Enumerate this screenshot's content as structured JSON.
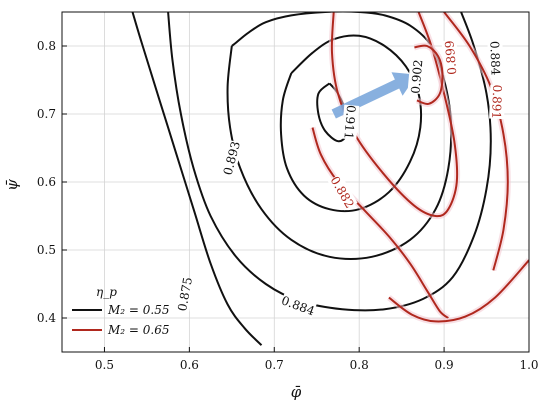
{
  "chart_data": {
    "type": "line",
    "xlabel": "φ̄",
    "ylabel": "ψ̄",
    "xlim": [
      0.45,
      1.0
    ],
    "ylim": [
      0.35,
      0.85
    ],
    "xticks": [
      "0.5",
      "0.6",
      "0.7",
      "0.8",
      "0.9",
      "1.0"
    ],
    "yticks": [
      "0.4",
      "0.5",
      "0.6",
      "0.7",
      "0.8"
    ],
    "grid": true,
    "legend": {
      "title": "η_p",
      "placement": "bottom-left",
      "entries": [
        {
          "label": "M₂ = 0.55",
          "color": "#111111"
        },
        {
          "label": "M₂ = 0.65",
          "color": "#b0281e"
        }
      ]
    },
    "series": [
      {
        "group": "black",
        "level": "0.875",
        "x": [
          0.533,
          0.545,
          0.565,
          0.585,
          0.605,
          0.625,
          0.645,
          0.665,
          0.685
        ],
        "y": [
          0.85,
          0.8,
          0.72,
          0.64,
          0.56,
          0.48,
          0.42,
          0.385,
          0.36
        ]
      },
      {
        "group": "black",
        "level": "0.884",
        "x": [
          0.575,
          0.58,
          0.59,
          0.605,
          0.625,
          0.655,
          0.69,
          0.73,
          0.78,
          0.83,
          0.875,
          0.91,
          0.935,
          0.95,
          0.955,
          0.95,
          0.935,
          0.92
        ],
        "y": [
          0.85,
          0.78,
          0.7,
          0.62,
          0.55,
          0.49,
          0.45,
          0.425,
          0.413,
          0.413,
          0.428,
          0.46,
          0.52,
          0.59,
          0.66,
          0.73,
          0.8,
          0.85
        ]
      },
      {
        "group": "black",
        "level": "0.893",
        "x": [
          0.65,
          0.645,
          0.648,
          0.66,
          0.685,
          0.72,
          0.765,
          0.815,
          0.86,
          0.89,
          0.905,
          0.908,
          0.9,
          0.885,
          0.86,
          0.83,
          0.8,
          0.76,
          0.72,
          0.69,
          0.67,
          0.655,
          0.65
        ],
        "y": [
          0.8,
          0.74,
          0.68,
          0.62,
          0.56,
          0.515,
          0.49,
          0.49,
          0.515,
          0.56,
          0.62,
          0.69,
          0.75,
          0.8,
          0.83,
          0.845,
          0.85,
          0.85,
          0.845,
          0.835,
          0.82,
          0.805,
          0.8
        ]
      },
      {
        "group": "black",
        "level": "0.902",
        "x": [
          0.72,
          0.71,
          0.708,
          0.715,
          0.735,
          0.765,
          0.8,
          0.835,
          0.86,
          0.872,
          0.87,
          0.855,
          0.83,
          0.8,
          0.77,
          0.745,
          0.72
        ],
        "y": [
          0.76,
          0.72,
          0.67,
          0.62,
          0.58,
          0.56,
          0.56,
          0.585,
          0.63,
          0.68,
          0.73,
          0.77,
          0.8,
          0.815,
          0.81,
          0.79,
          0.76
        ]
      },
      {
        "group": "black",
        "level": "0.911",
        "x": [
          0.765,
          0.752,
          0.752,
          0.76,
          0.775,
          0.785,
          0.785,
          0.775,
          0.765
        ],
        "y": [
          0.745,
          0.73,
          0.7,
          0.675,
          0.66,
          0.67,
          0.7,
          0.73,
          0.745
        ]
      },
      {
        "group": "red",
        "level": "0.882",
        "x": [
          0.77,
          0.768,
          0.775,
          0.795,
          0.83,
          0.865,
          0.89,
          0.905,
          0.915,
          0.912,
          0.9,
          0.885,
          0.87
        ],
        "y": [
          0.85,
          0.79,
          0.73,
          0.67,
          0.61,
          0.565,
          0.55,
          0.56,
          0.6,
          0.66,
          0.73,
          0.8,
          0.85
        ]
      },
      {
        "group": "red",
        "level": "0.882",
        "x": [
          0.745,
          0.755,
          0.775,
          0.805,
          0.835,
          0.86,
          0.88,
          0.895,
          0.905
        ],
        "y": [
          0.68,
          0.64,
          0.6,
          0.56,
          0.52,
          0.48,
          0.44,
          0.41,
          0.4
        ]
      },
      {
        "group": "red",
        "level": "0.891",
        "x": [
          0.9,
          0.93,
          0.955,
          0.97,
          0.975,
          0.97,
          0.958
        ],
        "y": [
          0.85,
          0.8,
          0.74,
          0.67,
          0.6,
          0.53,
          0.47
        ]
      },
      {
        "group": "red",
        "level": "0.891",
        "x": [
          0.835,
          0.862,
          0.89,
          0.925,
          0.96,
          1.0
        ],
        "y": [
          0.43,
          0.405,
          0.395,
          0.402,
          0.43,
          0.485
        ]
      },
      {
        "group": "red",
        "level": "0.899",
        "x": [
          0.865,
          0.88,
          0.893,
          0.898,
          0.895,
          0.882,
          0.868
        ],
        "y": [
          0.798,
          0.8,
          0.785,
          0.76,
          0.73,
          0.715,
          0.72
        ]
      }
    ],
    "contour_labels": [
      {
        "text": "0.875",
        "x": 0.595,
        "y": 0.435,
        "rot": -80,
        "group": "black"
      },
      {
        "text": "0.884",
        "x": 0.728,
        "y": 0.418,
        "rot": 20,
        "group": "black"
      },
      {
        "text": "0.893",
        "x": 0.65,
        "y": 0.635,
        "rot": -75,
        "group": "black"
      },
      {
        "text": "0.902",
        "x": 0.868,
        "y": 0.755,
        "rot": -85,
        "group": "black"
      },
      {
        "text": "0.911",
        "x": 0.789,
        "y": 0.688,
        "rot": 95,
        "group": "black"
      },
      {
        "text": "0.899",
        "x": 0.908,
        "y": 0.783,
        "rot": -95,
        "group": "red"
      },
      {
        "text": "0.891",
        "x": 0.962,
        "y": 0.718,
        "rot": 92,
        "group": "red"
      },
      {
        "text": "0.882",
        "x": 0.78,
        "y": 0.585,
        "rot": 60,
        "group": "red"
      },
      {
        "text": "0.884",
        "x": 0.96,
        "y": 0.782,
        "rot": 88,
        "group": "black"
      }
    ],
    "arrow": {
      "from": [
        0.77,
        0.7
      ],
      "to": [
        0.868,
        0.758
      ],
      "color": "#7ba7dc"
    }
  }
}
